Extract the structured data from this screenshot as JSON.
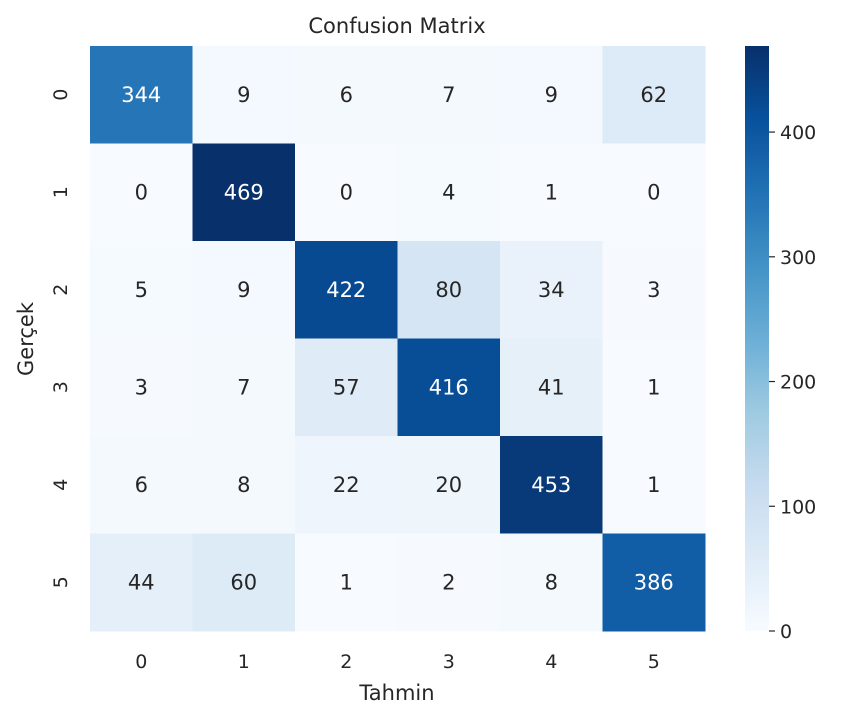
{
  "chart_data": {
    "type": "heatmap",
    "title": "Confusion Matrix",
    "xlabel": "Tahmin",
    "ylabel": "Gerçek",
    "x_categories": [
      "0",
      "1",
      "2",
      "3",
      "4",
      "5"
    ],
    "y_categories": [
      "0",
      "1",
      "2",
      "3",
      "4",
      "5"
    ],
    "matrix": [
      [
        344,
        9,
        6,
        7,
        9,
        62
      ],
      [
        0,
        469,
        0,
        4,
        1,
        0
      ],
      [
        5,
        9,
        422,
        80,
        34,
        3
      ],
      [
        3,
        7,
        57,
        416,
        41,
        1
      ],
      [
        6,
        8,
        22,
        20,
        453,
        1
      ],
      [
        44,
        60,
        1,
        2,
        8,
        386
      ]
    ],
    "colormap": "Blues",
    "color_low": "#f7fbff",
    "color_high": "#08306b",
    "colorbar": {
      "range": [
        0,
        469
      ],
      "ticks": [
        0,
        100,
        200,
        300,
        400
      ],
      "tick_labels": [
        "0",
        "100",
        "200",
        "300",
        "400"
      ]
    }
  }
}
